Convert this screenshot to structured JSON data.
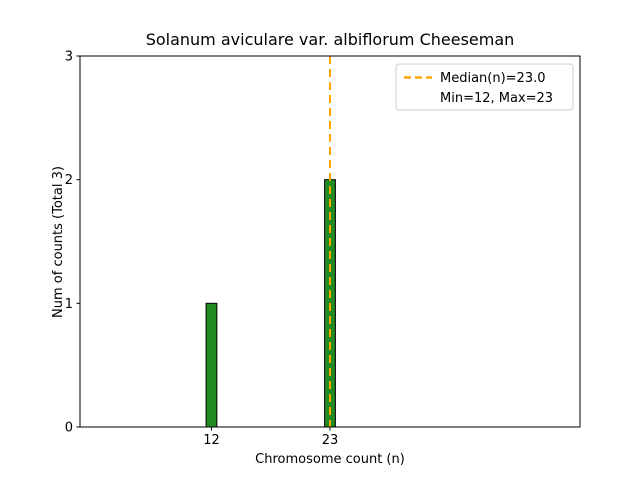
{
  "chart_data": {
    "type": "bar",
    "title": "Solanum aviculare var. albiflorum Cheeseman",
    "xlabel": "Chromosome count (n)",
    "ylabel": "Num of counts    (Total 3)",
    "x": [
      12,
      23
    ],
    "values": [
      1,
      2
    ],
    "total_counts": 3,
    "xticks": [
      12,
      23
    ],
    "yticks": [
      0,
      1,
      2,
      3
    ],
    "xlim": [
      -0.2,
      46.2
    ],
    "ylim": [
      0,
      3
    ],
    "bar_width": 1.0,
    "bar_color": "#228B22",
    "bar_edge_color": "#000000",
    "median": 23.0,
    "min": 12,
    "max": 23,
    "median_line_color": "#FFA500",
    "median_line_style": "dashed",
    "grid": false,
    "legend_position": "upper right",
    "legend": [
      {
        "label": "Median(n)=23.0",
        "swatch": "dashed-line"
      },
      {
        "label": "Min=12, Max=23",
        "swatch": "none"
      }
    ]
  }
}
